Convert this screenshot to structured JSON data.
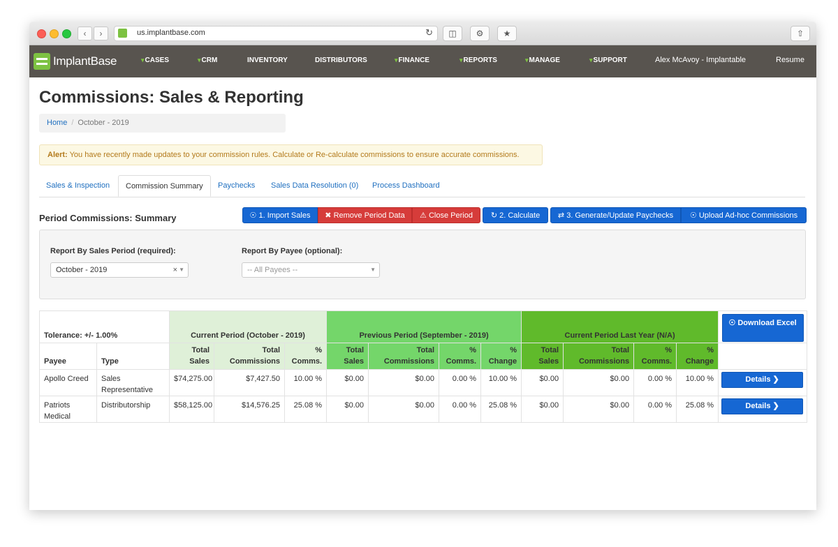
{
  "browser": {
    "url": "us.implantbase.com"
  },
  "app": {
    "logo_text": "ImplantBase",
    "nav": [
      {
        "label": "CASES",
        "has_caret": true
      },
      {
        "label": "CRM",
        "has_caret": true
      },
      {
        "label": "INVENTORY",
        "has_caret": false
      },
      {
        "label": "DISTRIBUTORS",
        "has_caret": false
      },
      {
        "label": "FINANCE",
        "has_caret": true
      },
      {
        "label": "REPORTS",
        "has_caret": true
      },
      {
        "label": "MANAGE",
        "has_caret": true
      },
      {
        "label": "SUPPORT",
        "has_caret": true
      }
    ],
    "user": "Alex McAvoy - Implantable",
    "resume": "Resume",
    "colors": {
      "nav_bg": "#58544f",
      "accent": "#7dc242",
      "primary": "#1667d3",
      "danger": "#d63c3a"
    }
  },
  "page": {
    "title": "Commissions: Sales & Reporting",
    "breadcrumb": {
      "home": "Home",
      "current": "October - 2019"
    },
    "alert": {
      "label": "Alert:",
      "text": "You have recently made updates to your commission rules. Calculate or Re-calculate commissions to ensure accurate commissions."
    },
    "tabs": [
      {
        "label": "Sales & Inspection",
        "active": false
      },
      {
        "label": "Commission Summary",
        "active": true
      },
      {
        "label": "Paychecks",
        "active": false
      },
      {
        "label": "Sales Data Resolution (0)",
        "active": false
      },
      {
        "label": "Process Dashboard",
        "active": false
      }
    ],
    "section_title": "Period Commissions: Summary",
    "buttons": {
      "import": "1. Import Sales",
      "remove": "Remove Period Data",
      "close": "Close Period",
      "calculate": "2. Calculate",
      "generate": "3. Generate/Update Paychecks",
      "upload": "Upload Ad-hoc Commissions"
    },
    "filters": {
      "period_label": "Report By Sales Period (required):",
      "period_value": "October - 2019",
      "payee_label": "Report By Payee (optional):",
      "payee_placeholder": "-- All Payees --"
    },
    "table": {
      "tolerance": "Tolerance: +/- 1.00%",
      "group_current": "Current Period (October - 2019)",
      "group_previous": "Previous Period (September - 2019)",
      "group_last_year": "Current Period Last Year (N/A)",
      "download": "Download Excel",
      "col_payee": "Payee",
      "col_type": "Type",
      "col_total_sales": "Total Sales",
      "col_total_comm": "Total Commissions",
      "col_pct_comm": "% Comms.",
      "col_pct_change": "% Change",
      "details": "Details",
      "rows": [
        {
          "payee": "Apollo Creed",
          "type": "Sales Representative",
          "cur_sales": "$74,275.00",
          "cur_comm": "$7,427.50",
          "cur_pct": "10.00 %",
          "prev_sales": "$0.00",
          "prev_comm": "$0.00",
          "prev_pct": "0.00 %",
          "prev_change": "10.00 %",
          "ly_sales": "$0.00",
          "ly_comm": "$0.00",
          "ly_pct": "0.00 %",
          "ly_change": "10.00 %"
        },
        {
          "payee": "Patriots Medical",
          "type": "Distributorship",
          "cur_sales": "$58,125.00",
          "cur_comm": "$14,576.25",
          "cur_pct": "25.08 %",
          "prev_sales": "$0.00",
          "prev_comm": "$0.00",
          "prev_pct": "0.00 %",
          "prev_change": "25.08 %",
          "ly_sales": "$0.00",
          "ly_comm": "$0.00",
          "ly_pct": "0.00 %",
          "ly_change": "25.08 %"
        }
      ]
    }
  }
}
